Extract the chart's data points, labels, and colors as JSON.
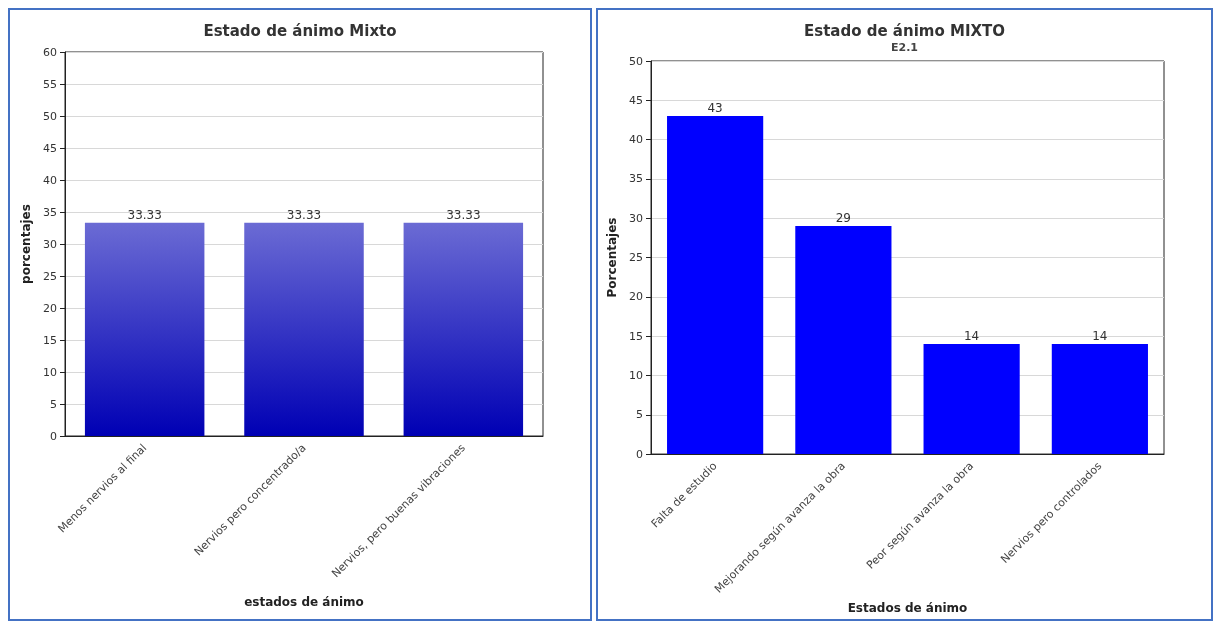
{
  "chart_data": [
    {
      "type": "bar",
      "title": "Estado de ánimo Mixto",
      "xlabel": "estados de ánimo",
      "ylabel": "porcentajes",
      "categories": [
        "Menos nervios al final",
        "Nervios pero concentrado/a",
        "Nervios, pero buenas vibraciones"
      ],
      "values": [
        33.33,
        33.33,
        33.33
      ],
      "color": "#0000b4",
      "ylim": [
        0,
        60
      ],
      "yticks": [
        0,
        5,
        10,
        15,
        20,
        25,
        30,
        35,
        40,
        45,
        50,
        55,
        60
      ],
      "grid": "y",
      "data_labels": true
    },
    {
      "type": "bar",
      "title": "Estado de ánimo MIXTO",
      "subtitle": "E2.1",
      "xlabel": "Estados de ánimo",
      "ylabel": "Porcentajes",
      "categories": [
        "Falta de estudio",
        "Mejorando según avanza la obra",
        "Peor según avanza la obra",
        "Nervios pero controlados"
      ],
      "values": [
        43,
        29,
        14,
        14
      ],
      "color": "#0000ff",
      "ylim": [
        0,
        50
      ],
      "yticks": [
        0,
        5,
        10,
        15,
        20,
        25,
        30,
        35,
        40,
        45,
        50
      ],
      "grid": "y",
      "data_labels": true
    }
  ]
}
